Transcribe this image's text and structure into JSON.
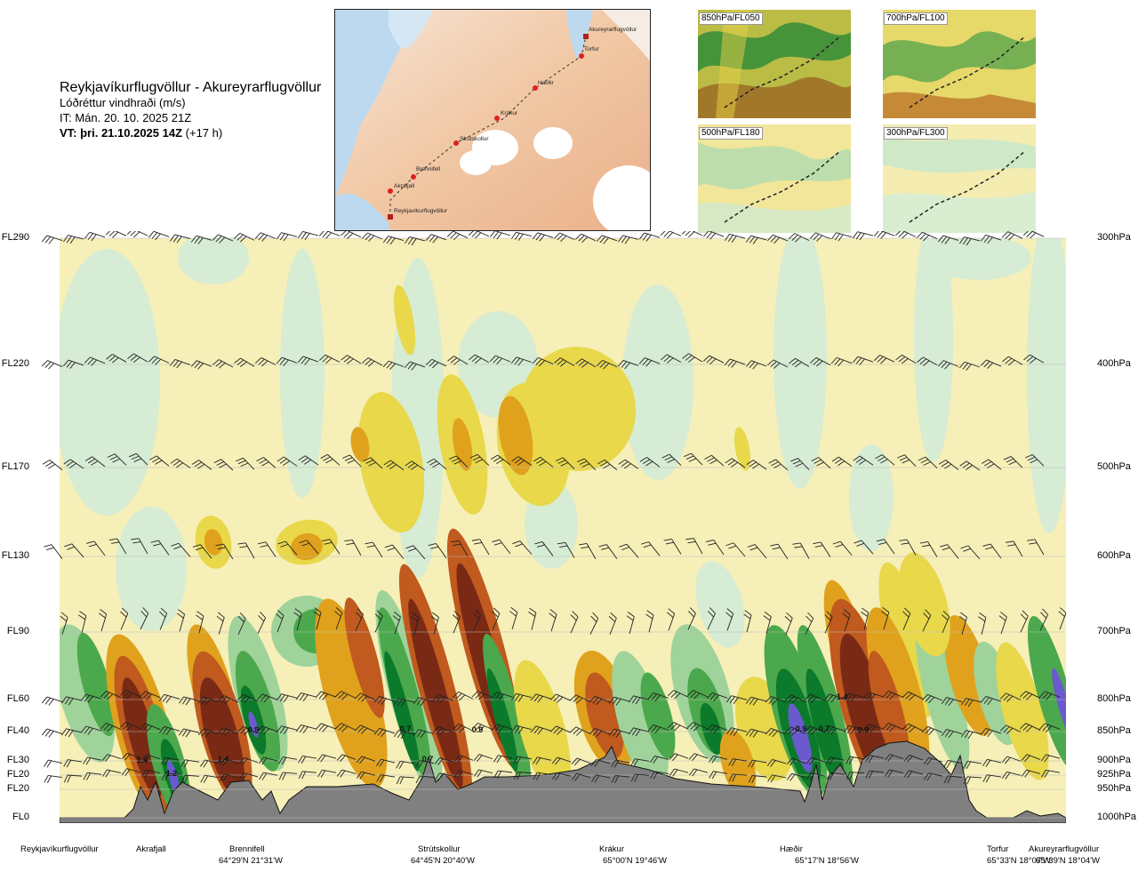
{
  "header": {
    "title": "Reykjavíkurflugvöllur - Akureyrarflugvöllur",
    "subtitle": "Lóðréttur vindhraði (m/s)",
    "issue_time": "IT: Mán. 20. 10. 2025 21Z",
    "valid_prefix": "VT: þri. 21.10.2025 14Z",
    "valid_suffix": " (+17 h)"
  },
  "route_map": {
    "waypoints": [
      "Akureyrarflugvöllur",
      "Torfur",
      "Hæðir",
      "Krákur",
      "Strútskollur",
      "Brennifell",
      "Akrafjall",
      "Reykjavíkurflugvöllur"
    ]
  },
  "thumbnails": [
    {
      "label": "850hPa/FL050"
    },
    {
      "label": "700hPa/FL100"
    },
    {
      "label": "500hPa/FL180"
    },
    {
      "label": "300hPa/FL300"
    }
  ],
  "colors": {
    "strong_down": "#7a2a14",
    "down": "#c05a1e",
    "weak_down": "#e0a21c",
    "very_weak_down": "#e8d84a",
    "neutral": "#f6efb8",
    "very_weak_up": "#d6ecd4",
    "weak_up": "#9fd39a",
    "up": "#4ca84c",
    "strong_up": "#0b7a2a",
    "extreme_up": "#6a5acd",
    "terrain": "#808080"
  },
  "chart_data": {
    "type": "heatmap",
    "levels": [
      {
        "fl": "FL290",
        "hpa": "300hPa"
      },
      {
        "fl": "FL220",
        "hpa": "400hPa"
      },
      {
        "fl": "FL170",
        "hpa": "500hPa"
      },
      {
        "fl": "FL130",
        "hpa": "600hPa"
      },
      {
        "fl": "FL90",
        "hpa": "700hPa"
      },
      {
        "fl": "FL60",
        "hpa": "800hPa"
      },
      {
        "fl": "FL40",
        "hpa": "850hPa"
      },
      {
        "fl": "FL30",
        "hpa": "900hPa"
      },
      {
        "fl": "FL20",
        "hpa": "925hPa"
      },
      {
        "fl": "FL20",
        "hpa": "950hPa"
      },
      {
        "fl": "FL0",
        "hpa": "1000hPa"
      }
    ],
    "stations": [
      {
        "name": "Reykjavíkurflugvöllur",
        "coord": ""
      },
      {
        "name": "Akrafjall",
        "coord": ""
      },
      {
        "name": "Brennifell",
        "coord": "64°29'N 21°31'W"
      },
      {
        "name": "Strútskollur",
        "coord": "64°45'N 20°40'W"
      },
      {
        "name": "Krákur",
        "coord": "65°00'N 19°46'W"
      },
      {
        "name": "Hæðir",
        "coord": "65°17'N 18°56'W"
      },
      {
        "name": "Torfur",
        "coord": "65°33'N 18°07'W"
      },
      {
        "name": "Akureyrarflugvöllur",
        "coord": "65°39'N 18°04'W"
      }
    ],
    "value_labels": [
      {
        "text": "1.4"
      },
      {
        "text": "1.2"
      },
      {
        "text": "1.4"
      },
      {
        "text": "0.9"
      },
      {
        "text": "0.7"
      },
      {
        "text": "0.7"
      },
      {
        "text": "0.9"
      },
      {
        "text": "0.9"
      },
      {
        "text": "0.7"
      },
      {
        "text": "1.4"
      },
      {
        "text": "0.9"
      }
    ]
  }
}
